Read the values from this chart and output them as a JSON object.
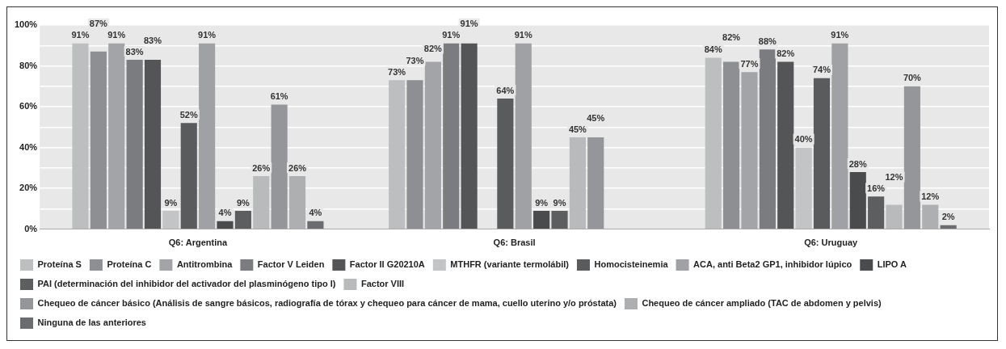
{
  "chart_data": {
    "type": "bar",
    "categories": [
      "Q6: Argentina",
      "Q6: Brasil",
      "Q6: Uruguay"
    ],
    "ylim": [
      0,
      100
    ],
    "yticks": [
      {
        "value": 0,
        "label": "0%"
      },
      {
        "value": 10,
        "label": null
      },
      {
        "value": 20,
        "label": "20%"
      },
      {
        "value": 30,
        "label": null
      },
      {
        "value": 40,
        "label": "40%"
      },
      {
        "value": 50,
        "label": null
      },
      {
        "value": 60,
        "label": "60%"
      },
      {
        "value": 70,
        "label": null
      },
      {
        "value": 80,
        "label": "80%"
      },
      {
        "value": 90,
        "label": null
      },
      {
        "value": 100,
        "label": "100%"
      }
    ],
    "grid": "y",
    "legend": "bottom",
    "series": [
      {
        "name": "Proteína S",
        "color": "#bdbec0",
        "values": [
          91,
          73,
          84
        ],
        "value_labels": [
          "91%",
          "73%",
          "84%"
        ]
      },
      {
        "name": "Proteína C",
        "color": "#8e8f92",
        "values": [
          87,
          73,
          82
        ],
        "value_labels": [
          "87%",
          "73%",
          "82%"
        ]
      },
      {
        "name": "Antitrombina",
        "color": "#a3a4a7",
        "values": [
          91,
          82,
          77
        ],
        "value_labels": [
          "91%",
          "82%",
          "77%"
        ]
      },
      {
        "name": "Factor V Leiden",
        "color": "#7b7c7f",
        "values": [
          83,
          91,
          88
        ],
        "value_labels": [
          "83%",
          "91%",
          "88%"
        ]
      },
      {
        "name": "Factor II G20210A",
        "color": "#545557",
        "values": [
          83,
          91,
          82
        ],
        "value_labels": [
          "83%",
          "91%",
          "82%"
        ]
      },
      {
        "name": "MTHFR (variante termolábil)",
        "color": "#c3c4c6",
        "values": [
          9,
          null,
          40
        ],
        "value_labels": [
          "9%",
          null,
          "40%"
        ]
      },
      {
        "name": "Homocisteinemia",
        "color": "#5a5b5d",
        "values": [
          52,
          64,
          74
        ],
        "value_labels": [
          "52%",
          "64%",
          "74%"
        ]
      },
      {
        "name": "ACA, anti Beta2 GP1, inhibidor lúpico",
        "color": "#a0a1a4",
        "values": [
          91,
          91,
          91
        ],
        "value_labels": [
          "91%",
          "91%",
          "91%"
        ]
      },
      {
        "name": "LIPO A",
        "color": "#4a4b4d",
        "values": [
          4,
          9,
          28
        ],
        "value_labels": [
          "4%",
          "9%",
          "28%"
        ]
      },
      {
        "name": "PAI (determinación del inhibidor del activador del plasminógeno tipo I)",
        "color": "#5d5e60",
        "values": [
          9,
          9,
          16
        ],
        "value_labels": [
          "9%",
          "9%",
          "16%"
        ]
      },
      {
        "name": "Factor VIII",
        "color": "#b9babc",
        "values": [
          26,
          45,
          12
        ],
        "value_labels": [
          "26%",
          "45%",
          "12%"
        ]
      },
      {
        "name": "Chequeo de cáncer básico (Análisis de sangre básicos, radiografía de tórax y chequeo para cáncer de mama, cuello uterino y/o próstata)",
        "color": "#959699",
        "values": [
          61,
          45,
          70
        ],
        "value_labels": [
          "61%",
          "45%",
          "70%"
        ]
      },
      {
        "name": "Chequeo de cáncer ampliado (TAC de abdomen y pelvis)",
        "color": "#aeafb1",
        "values": [
          26,
          null,
          12
        ],
        "value_labels": [
          "26%",
          null,
          "12%"
        ]
      },
      {
        "name": "Ninguna de las anteriores",
        "color": "#6b6c6f",
        "values": [
          4,
          null,
          2
        ],
        "value_labels": [
          "4%",
          null,
          "2%"
        ]
      }
    ]
  }
}
